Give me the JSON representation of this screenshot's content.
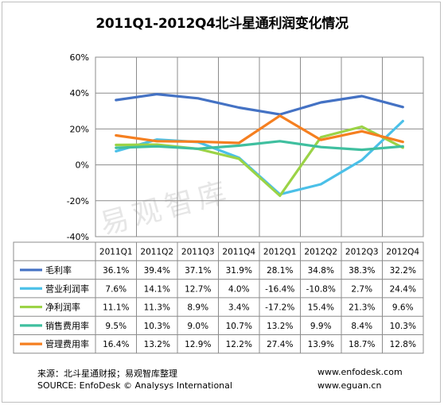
{
  "title": "2011Q1-2012Q4北斗星通利润变化情况",
  "watermark": "易观智库",
  "chart_data": {
    "type": "line",
    "categories": [
      "2011Q1",
      "2011Q2",
      "2011Q3",
      "2011Q4",
      "2012Q1",
      "2012Q2",
      "2012Q3",
      "2012Q4"
    ],
    "y_ticks": [
      "60%",
      "40%",
      "20%",
      "0%",
      "-20%",
      "-40%"
    ],
    "ylim": [
      -40,
      60
    ],
    "grid": true,
    "legend": "table-below",
    "series": [
      {
        "name": "毛利率",
        "color": "#4472c4",
        "values": [
          36.1,
          39.4,
          37.1,
          31.9,
          28.1,
          34.8,
          38.3,
          32.2
        ],
        "labels": [
          "36.1%",
          "39.4%",
          "37.1%",
          "31.9%",
          "28.1%",
          "34.8%",
          "38.3%",
          "32.2%"
        ]
      },
      {
        "name": "营业利润率",
        "color": "#4bc0e8",
        "values": [
          7.6,
          14.1,
          12.7,
          4.0,
          -16.4,
          -10.8,
          2.7,
          24.4
        ],
        "labels": [
          "7.6%",
          "14.1%",
          "12.7%",
          "4.0%",
          "-16.4%",
          "-10.8%",
          "2.7%",
          "24.4%"
        ]
      },
      {
        "name": "净利润率",
        "color": "#9bd346",
        "values": [
          11.1,
          11.3,
          8.9,
          3.4,
          -17.2,
          15.4,
          21.3,
          9.6
        ],
        "labels": [
          "11.1%",
          "11.3%",
          "8.9%",
          "3.4%",
          "-17.2%",
          "15.4%",
          "21.3%",
          "9.6%"
        ]
      },
      {
        "name": "销售费用率",
        "color": "#3fbf9f",
        "values": [
          9.5,
          10.3,
          9.0,
          10.7,
          13.2,
          9.9,
          8.4,
          10.3
        ],
        "labels": [
          "9.5%",
          "10.3%",
          "9.0%",
          "10.7%",
          "13.2%",
          "9.9%",
          "8.4%",
          "10.3%"
        ]
      },
      {
        "name": "管理费用率",
        "color": "#f57f20",
        "values": [
          16.4,
          13.2,
          12.9,
          12.2,
          27.4,
          13.9,
          18.7,
          12.8
        ],
        "labels": [
          "16.4%",
          "13.2%",
          "12.9%",
          "12.2%",
          "27.4%",
          "13.9%",
          "18.7%",
          "12.8%"
        ]
      }
    ]
  },
  "footer": {
    "source_cn": "来源：北斗星通财报；易观智库整理",
    "source_en": "SOURCE: EnfoDesk © Analysys International",
    "url1": "www.enfodesk.com",
    "url2": "www.eguan.cn"
  }
}
